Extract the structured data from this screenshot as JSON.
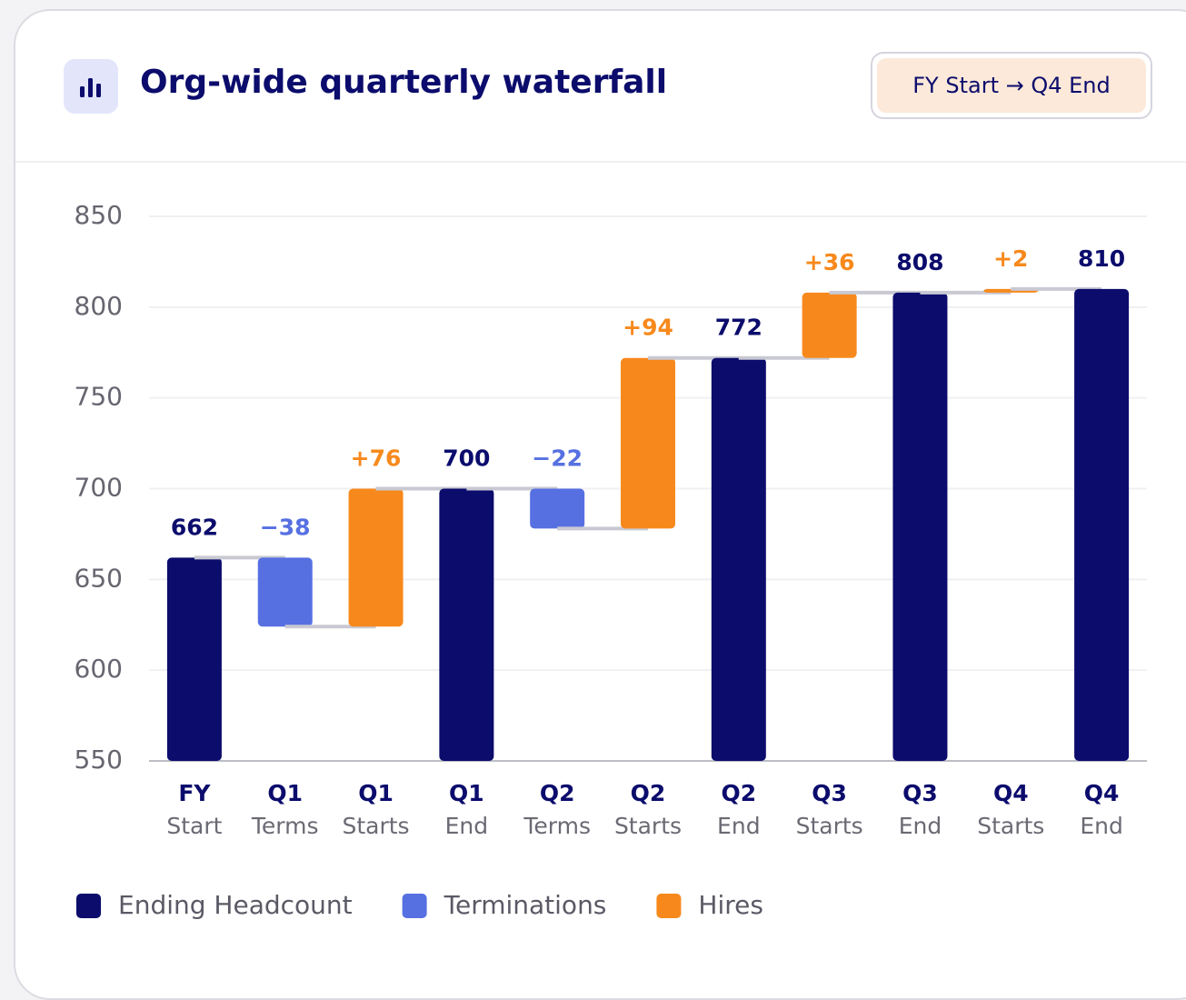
{
  "header": {
    "title": "Org-wide quarterly waterfall",
    "badge": "FY Start → Q4 End"
  },
  "chart_data": {
    "type": "waterfall",
    "categories": [
      [
        "FY",
        "Start"
      ],
      [
        "Q1",
        "Terms"
      ],
      [
        "Q1",
        "Starts"
      ],
      [
        "Q1",
        "End"
      ],
      [
        "Q2",
        "Terms"
      ],
      [
        "Q2",
        "Starts"
      ],
      [
        "Q2",
        "End"
      ],
      [
        "Q3",
        "Starts"
      ],
      [
        "Q3",
        "End"
      ],
      [
        "Q4",
        "Starts"
      ],
      [
        "Q4",
        "End"
      ]
    ],
    "series": [
      {
        "name": "Ending Headcount",
        "color": "#0b0c6c",
        "values": [
          662,
          null,
          null,
          700,
          null,
          null,
          772,
          null,
          808,
          null,
          810
        ]
      },
      {
        "name": "Terminations",
        "color": "#5670e2",
        "values": [
          null,
          -38,
          null,
          null,
          -22,
          null,
          null,
          null,
          null,
          null,
          null
        ],
        "value_labels": [
          null,
          "−38",
          null,
          null,
          "−22",
          null,
          null,
          null,
          null,
          null,
          null
        ]
      },
      {
        "name": "Hires",
        "color": "#f7891c",
        "values": [
          null,
          null,
          76,
          null,
          null,
          94,
          null,
          36,
          null,
          2,
          null
        ],
        "value_labels": [
          null,
          null,
          "+76",
          null,
          null,
          "+94",
          null,
          "+36",
          null,
          "+2",
          null
        ]
      }
    ],
    "ylim": [
      550,
      850
    ],
    "yticks": [
      550,
      600,
      650,
      700,
      750,
      800,
      850
    ],
    "grid": true,
    "legend": "bottom"
  }
}
